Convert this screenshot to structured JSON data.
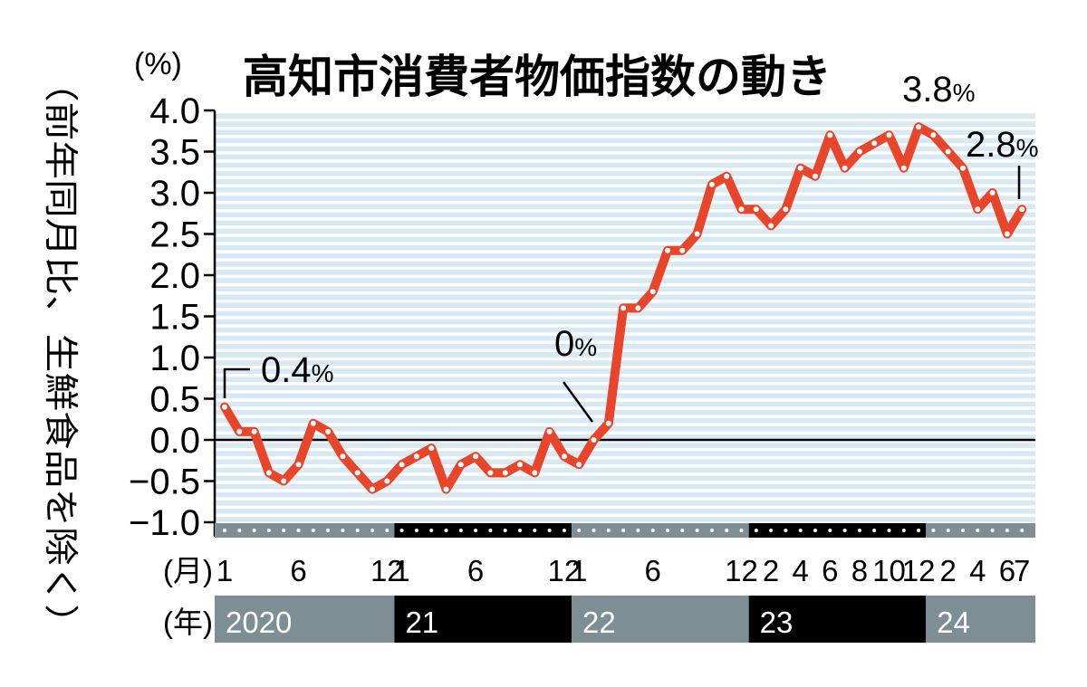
{
  "chart_data": {
    "type": "line",
    "title": "高知市消費者物価指数の動き",
    "ylabel": "（前年同月比、生鮮食品を除く）",
    "y_unit": "(%)",
    "ylim": [
      -1.0,
      4.0
    ],
    "y_ticks": [
      "4.0",
      "3.5",
      "3.0",
      "2.5",
      "2.0",
      "1.5",
      "1.0",
      "0.5",
      "0.0",
      "−0.5",
      "−1.0"
    ],
    "month_axis_label": "(月)",
    "year_axis_label": "(年)",
    "month_ticks": [
      {
        "label": "1",
        "index": 0
      },
      {
        "label": "6",
        "index": 5
      },
      {
        "label": "12",
        "index": 11
      },
      {
        "label": "1",
        "index": 12
      },
      {
        "label": "6",
        "index": 17
      },
      {
        "label": "12",
        "index": 23
      },
      {
        "label": "1",
        "index": 24
      },
      {
        "label": "6",
        "index": 29
      },
      {
        "label": "12",
        "index": 35
      },
      {
        "label": "2",
        "index": 37
      },
      {
        "label": "4",
        "index": 39
      },
      {
        "label": "6",
        "index": 41
      },
      {
        "label": "8",
        "index": 43
      },
      {
        "label": "10",
        "index": 45
      },
      {
        "label": "12",
        "index": 47
      },
      {
        "label": "2",
        "index": 49
      },
      {
        "label": "4",
        "index": 51
      },
      {
        "label": "6",
        "index": 53
      },
      {
        "label": "7",
        "index": 54
      }
    ],
    "years": [
      {
        "label": "2020",
        "start": 0,
        "end": 11
      },
      {
        "label": "21",
        "start": 12,
        "end": 23
      },
      {
        "label": "22",
        "start": 24,
        "end": 35
      },
      {
        "label": "23",
        "start": 36,
        "end": 47
      },
      {
        "label": "24",
        "start": 48,
        "end": 54
      }
    ],
    "values": [
      0.4,
      0.1,
      0.1,
      -0.4,
      -0.5,
      -0.3,
      0.2,
      0.1,
      -0.2,
      -0.4,
      -0.6,
      -0.5,
      -0.3,
      -0.2,
      -0.1,
      -0.6,
      -0.3,
      -0.2,
      -0.4,
      -0.4,
      -0.3,
      -0.4,
      0.1,
      -0.2,
      -0.3,
      0.0,
      0.2,
      1.6,
      1.6,
      1.8,
      2.3,
      2.3,
      2.5,
      3.1,
      3.2,
      2.8,
      2.8,
      2.6,
      2.8,
      3.3,
      3.2,
      3.7,
      3.3,
      3.5,
      3.6,
      3.7,
      3.3,
      3.8,
      3.7,
      3.5,
      3.3,
      2.8,
      3.0,
      2.5,
      2.8
    ],
    "annotations": [
      {
        "index": 0,
        "value": "0.4",
        "unit": "%"
      },
      {
        "index": 25,
        "value": "0",
        "unit": "%"
      },
      {
        "index": 47,
        "value": "3.8",
        "unit": "%"
      },
      {
        "index": 54,
        "value": "2.8",
        "unit": "%"
      }
    ],
    "grid": true,
    "colors": {
      "line": "#e8452a",
      "grid_stripe": "#d9e9f3",
      "band_light": "#7d8e95",
      "band_dark": "#000000"
    }
  }
}
